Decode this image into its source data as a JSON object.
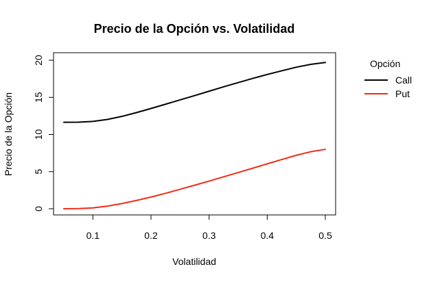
{
  "chart_data": {
    "type": "line",
    "title": "Precio de la Opción vs. Volatilidad",
    "xlabel": "Volatilidad",
    "ylabel": "Precio de la Opción",
    "xlim": [
      0.05,
      0.5
    ],
    "ylim": [
      0,
      20
    ],
    "x_ticks": [
      0.1,
      0.2,
      0.3,
      0.4,
      0.5
    ],
    "y_ticks": [
      0,
      5,
      10,
      15,
      20
    ],
    "legend": {
      "title": "Opción",
      "placement": "right"
    },
    "grid": false,
    "series": [
      {
        "name": "Call",
        "color": "#000000",
        "x": [
          0.05,
          0.075,
          0.1,
          0.125,
          0.15,
          0.175,
          0.2,
          0.225,
          0.25,
          0.275,
          0.3,
          0.325,
          0.35,
          0.375,
          0.4,
          0.425,
          0.45,
          0.475,
          0.5
        ],
        "values": [
          11.65,
          11.66,
          11.76,
          12.03,
          12.44,
          12.95,
          13.5,
          14.08,
          14.66,
          15.24,
          15.83,
          16.42,
          16.99,
          17.55,
          18.08,
          18.58,
          19.06,
          19.45,
          19.7
        ]
      },
      {
        "name": "Put",
        "color": "#ef2b16",
        "x": [
          0.05,
          0.075,
          0.1,
          0.125,
          0.15,
          0.175,
          0.2,
          0.225,
          0.25,
          0.275,
          0.3,
          0.325,
          0.35,
          0.375,
          0.4,
          0.425,
          0.45,
          0.475,
          0.5
        ],
        "values": [
          0.0,
          0.02,
          0.12,
          0.36,
          0.7,
          1.12,
          1.58,
          2.08,
          2.62,
          3.17,
          3.73,
          4.3,
          4.88,
          5.46,
          6.05,
          6.63,
          7.2,
          7.68,
          8.0
        ]
      }
    ]
  }
}
